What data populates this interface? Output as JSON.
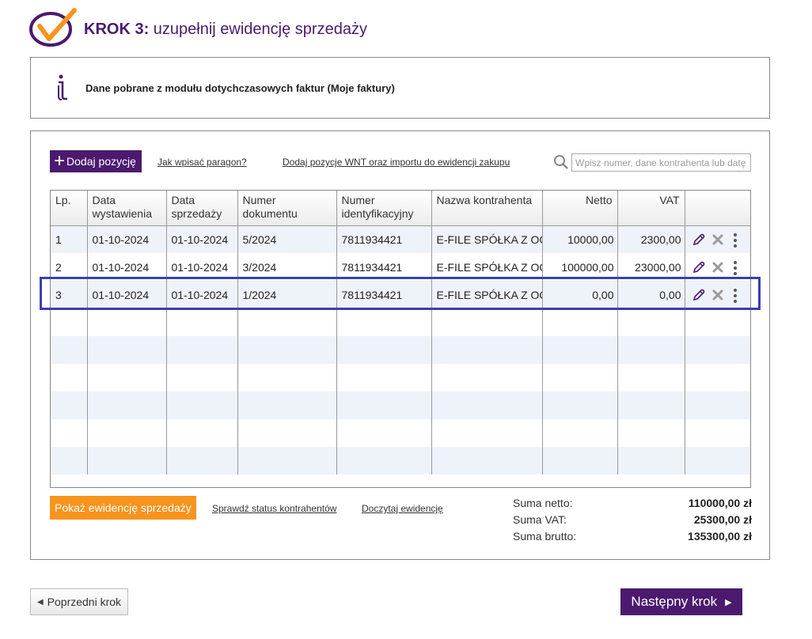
{
  "header": {
    "step": "KROK 3:",
    "title": "uzupełnij ewidencję sprzedaży"
  },
  "info": {
    "text": "Dane pobrane z modułu dotychczasowych faktur (Moje faktury)"
  },
  "toolbar": {
    "add_label": "Dodaj pozycję",
    "link_receipt": "Jak wpisać paragon?",
    "link_wnt": "Dodaj pozycje WNT oraz importu do ewidencji zakupu",
    "search_placeholder": "Wpisz numer, dane kontrahenta lub datę"
  },
  "table": {
    "columns": [
      "Lp.",
      "Data\nwystawienia",
      "Data\nsprzedaży",
      "Numer\ndokumentu",
      "Numer\nidentyfikacyjny",
      "Nazwa kontrahenta",
      "Netto",
      "VAT",
      ""
    ],
    "rows": [
      {
        "lp": "1",
        "data_wyst": "01-10-2024",
        "data_sprz": "01-10-2024",
        "numer": "5/2024",
        "nip": "7811934421",
        "kontrahent": "E-FILE SPÓŁKA Z OGRANICZONĄ",
        "netto": "10000,00",
        "vat": "2300,00"
      },
      {
        "lp": "2",
        "data_wyst": "01-10-2024",
        "data_sprz": "01-10-2024",
        "numer": "3/2024",
        "nip": "7811934421",
        "kontrahent": "E-FILE SPÓŁKA Z OGRANICZONĄ",
        "netto": "100000,00",
        "vat": "23000,00"
      },
      {
        "lp": "3",
        "data_wyst": "01-10-2024",
        "data_sprz": "01-10-2024",
        "numer": "1/2024",
        "nip": "7811934421",
        "kontrahent": "E-FILE SPÓŁKA Z OGRANICZONĄ",
        "netto": "0,00",
        "vat": "0,00"
      }
    ],
    "empty_rows": 6
  },
  "footer": {
    "show_btn": "Pokaż ewidencję sprzedaży",
    "link_status": "Sprawdź status kontrahentów",
    "link_read": "Doczytaj ewidencję",
    "totals": [
      {
        "label": "Suma netto:",
        "value": "110000,00 zł"
      },
      {
        "label": "Suma VAT:",
        "value": "25300,00 zł"
      },
      {
        "label": "Suma brutto:",
        "value": "135300,00 zł"
      }
    ]
  },
  "nav": {
    "prev": "Poprzedni krok",
    "next": "Następny krok"
  },
  "colors": {
    "brand": "#4b1a6e",
    "accent": "#f7941d",
    "highlight": "#3a3fae",
    "row_alt": "#eef3fa"
  },
  "icons": [
    "checkmark-logo-icon",
    "info-icon",
    "plus-icon",
    "search-icon",
    "edit-pencil-icon",
    "delete-x-icon",
    "more-dots-icon",
    "triangle-left-icon",
    "triangle-right-icon"
  ]
}
